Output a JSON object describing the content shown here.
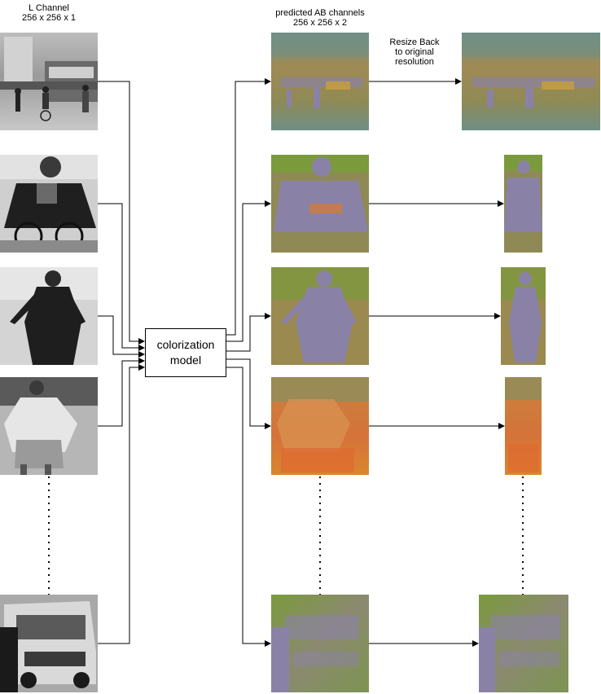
{
  "labels": {
    "l_channel": "L Channel\n256 x 256 x 1",
    "ab_channels": "predicted AB channels\n256 x 256 x 2",
    "resize_back": "Resize Back\nto original\nresolution",
    "model": "colorization\nmodel"
  },
  "colors": {
    "gray_dark": "#2f2f2f",
    "gray_mid": "#8a8a8a",
    "gray_light": "#d9d9d9",
    "ab_olive": "#8f8a55",
    "ab_teal": "#6f8f86",
    "ab_purple": "#8a82a6",
    "ab_orange": "#d07a3c",
    "ab_green": "#7a9a3c",
    "line": "#000000"
  },
  "images": {
    "l_channel_inputs": [
      "street-scene",
      "man-on-bicycle",
      "man-in-suit",
      "woman-walking",
      "vintage-bus"
    ],
    "ab_outputs": [
      "street-scene-ab",
      "man-on-bicycle-ab",
      "man-in-suit-ab",
      "woman-walking-ab",
      "vintage-bus-ab"
    ],
    "resized_outputs": [
      "street-scene-resized",
      "man-on-bicycle-resized",
      "man-in-suit-resized",
      "woman-walking-resized",
      "vintage-bus-resized"
    ]
  }
}
